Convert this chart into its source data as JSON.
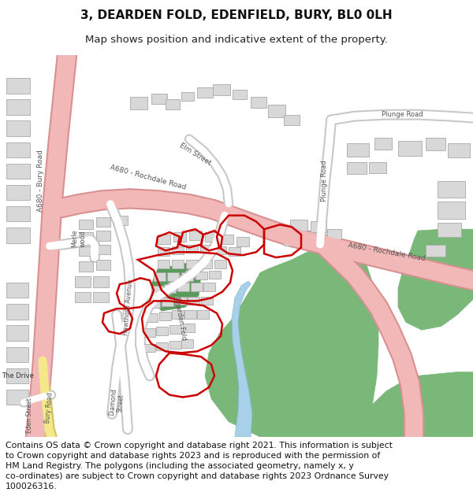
{
  "title_line1": "3, DEARDEN FOLD, EDENFIELD, BURY, BL0 0LH",
  "title_line2": "Map shows position and indicative extent of the property.",
  "footer_text": "Contains OS data © Crown copyright and database right 2021. This information is subject to Crown copyright and database rights 2023 and is reproduced with the permission of HM Land Registry. The polygons (including the associated geometry, namely x, y co-ordinates) are subject to Crown copyright and database rights 2023 Ordnance Survey 100026316.",
  "bg_color": "#ffffff",
  "map_bg": "#f5f5f2",
  "title_fontsize": 11,
  "subtitle_fontsize": 9.5,
  "footer_fontsize": 7.8,
  "road_pink": "#f2b8b8",
  "road_pink_edge": "#d89090",
  "road_yellow": "#f5e88a",
  "road_yellow_edge": "#d4c060",
  "road_white": "#ffffff",
  "road_white_edge": "#cccccc",
  "building_color": "#d8d8d8",
  "building_edge": "#aaaaaa",
  "green_color": "#7ab87a",
  "water_color": "#a8d0e8",
  "red_outline": "#cc0000"
}
